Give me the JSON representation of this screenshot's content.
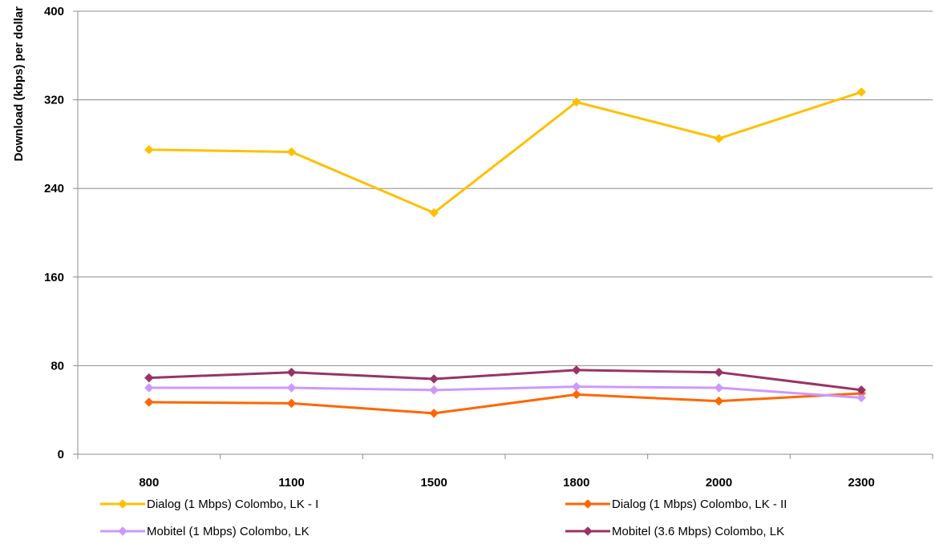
{
  "chart_data": {
    "type": "line",
    "title": "",
    "xlabel": "",
    "ylabel": "Download (kbps) per dollar",
    "categories": [
      "800",
      "1100",
      "1500",
      "1800",
      "2000",
      "2300"
    ],
    "y_ticks": [
      "0",
      "80",
      "160",
      "240",
      "320",
      "400"
    ],
    "ylim": [
      0,
      400
    ],
    "grid": true,
    "legend_position": "bottom",
    "series": [
      {
        "name": "Dialog (1 Mbps) Colombo, LK - I",
        "color": "#FFC000",
        "values": [
          275,
          273,
          218,
          318,
          285,
          327
        ]
      },
      {
        "name": "Dialog (1 Mbps) Colombo, LK - II",
        "color": "#FF6600",
        "values": [
          47,
          46,
          37,
          54,
          48,
          55
        ]
      },
      {
        "name": "Mobitel (1 Mbps) Colombo, LK",
        "color": "#CC99FF",
        "values": [
          60,
          60,
          58,
          61,
          60,
          51
        ]
      },
      {
        "name": "Mobitel (3.6 Mbps) Colombo, LK",
        "color": "#993366",
        "values": [
          69,
          74,
          68,
          76,
          74,
          58
        ]
      }
    ]
  }
}
